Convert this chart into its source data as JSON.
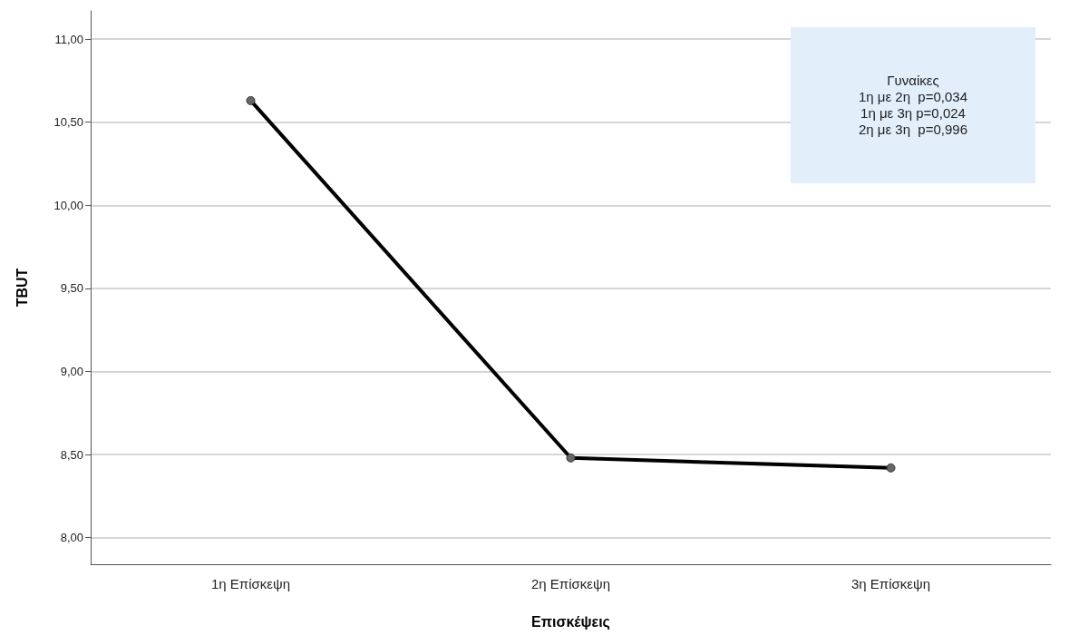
{
  "chart_data": {
    "type": "line",
    "xlabel": "Επισκέψεις",
    "ylabel": "TBUT",
    "categories": [
      "1η Επίσκεψη",
      "2η Επίσκεψη",
      "3η Επίσκεψη"
    ],
    "series": [
      {
        "color": "#000000",
        "values": [
          10.63,
          8.48,
          8.42
        ]
      }
    ],
    "ylim": [
      7.84,
      11.17
    ],
    "yticks": [
      {
        "value": 8,
        "label": "8,00"
      },
      {
        "value": 8.5,
        "label": "8,50"
      },
      {
        "value": 9,
        "label": "9,00"
      },
      {
        "value": 9.5,
        "label": "9,50"
      },
      {
        "value": 10,
        "label": "10,00"
      },
      {
        "value": 10.5,
        "label": "10,50"
      },
      {
        "value": 11,
        "label": "11,00"
      }
    ],
    "grid": "y",
    "marker": "circle",
    "line_style": "solid",
    "annotations": [
      "Γυναίκες\n1η με 2η  p=0,034\n1η με 3η p=0,024\n2η με 3η  p=0,996"
    ]
  }
}
